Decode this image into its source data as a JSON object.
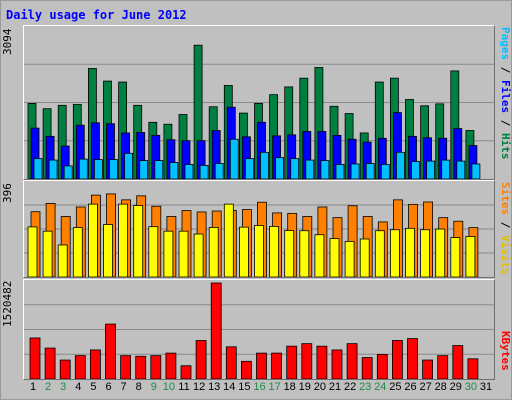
{
  "page": {
    "title": "Daily usage for June 2012"
  },
  "colors": {
    "hits": "#008040",
    "files": "#0000ff",
    "pages": "#00c0ff",
    "visits": "#ffff00",
    "sites": "#ff8000",
    "kbytes": "#ff0000",
    "weekend_label": "#1f8b4a",
    "background": "#c0c0c0"
  },
  "panels": {
    "hits": {
      "ymax": "3094",
      "label_pages": "Pages",
      "label_files": "Files",
      "label_hits": "Hits",
      "sep": " / "
    },
    "visits": {
      "ymax": "396",
      "label_sites": "Sites",
      "label_visits": "Visits",
      "sep": " / "
    },
    "kbytes": {
      "ymax": "1520482",
      "label_kbytes": "KBytes"
    }
  },
  "chart_data": [
    {
      "type": "bar",
      "title": "Daily usage for June 2012",
      "categories": [
        "1",
        "2",
        "3",
        "4",
        "5",
        "6",
        "7",
        "8",
        "9",
        "10",
        "11",
        "12",
        "13",
        "14",
        "15",
        "16",
        "17",
        "18",
        "19",
        "20",
        "21",
        "22",
        "23",
        "24",
        "25",
        "26",
        "27",
        "28",
        "29",
        "30",
        "31"
      ],
      "weekend_days": [
        2,
        3,
        9,
        10,
        16,
        17,
        23,
        24,
        30
      ],
      "ylim": [
        0,
        3094
      ],
      "series": [
        {
          "name": "Hits",
          "values": [
            1560,
            1450,
            1520,
            1540,
            2280,
            2020,
            2000,
            1520,
            1170,
            1130,
            1330,
            2760,
            1490,
            1930,
            1360,
            1560,
            1740,
            1900,
            2080,
            2300,
            1500,
            1350,
            950,
            2000,
            2080,
            1640,
            1510,
            1550,
            2230,
            1000,
            0
          ]
        },
        {
          "name": "Files",
          "values": [
            1050,
            880,
            680,
            1110,
            1160,
            1140,
            950,
            960,
            900,
            810,
            790,
            790,
            1000,
            1480,
            870,
            1170,
            890,
            910,
            980,
            980,
            900,
            820,
            760,
            840,
            1370,
            880,
            850,
            840,
            1040,
            690,
            0
          ]
        },
        {
          "name": "Pages",
          "values": [
            420,
            390,
            270,
            410,
            400,
            400,
            530,
            380,
            380,
            340,
            300,
            280,
            320,
            820,
            420,
            550,
            440,
            420,
            390,
            380,
            300,
            310,
            320,
            300,
            550,
            360,
            370,
            390,
            370,
            310,
            0
          ]
        }
      ]
    },
    {
      "type": "bar",
      "ylim": [
        0,
        396
      ],
      "series": [
        {
          "name": "Sites",
          "values": [
            275,
            310,
            255,
            295,
            345,
            350,
            325,
            342,
            298,
            255,
            280,
            274,
            278,
            280,
            284,
            315,
            270,
            268,
            255,
            295,
            250,
            300,
            255,
            232,
            325,
            306,
            316,
            250,
            235,
            208,
            0
          ]
        },
        {
          "name": "Visits",
          "values": [
            211,
            193,
            135,
            208,
            307,
            221,
            307,
            301,
            212,
            193,
            193,
            181,
            209,
            307,
            210,
            217,
            213,
            196,
            195,
            178,
            162,
            150,
            160,
            195,
            199,
            205,
            199,
            202,
            166,
            171,
            0
          ]
        }
      ]
    },
    {
      "type": "bar",
      "ylim": [
        0,
        1520482
      ],
      "series": [
        {
          "name": "KBytes",
          "values": [
            650000,
            490000,
            300000,
            370000,
            460000,
            870000,
            370000,
            360000,
            370000,
            410000,
            210000,
            610000,
            1520482,
            510000,
            280000,
            410000,
            410000,
            520000,
            560000,
            520000,
            460000,
            560000,
            340000,
            390000,
            610000,
            640000,
            300000,
            370000,
            530000,
            320000,
            0
          ]
        }
      ]
    }
  ]
}
